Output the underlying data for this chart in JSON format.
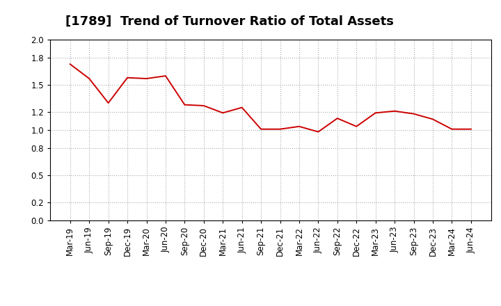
{
  "title": "[1789]  Trend of Turnover Ratio of Total Assets",
  "x_labels": [
    "Mar-19",
    "Jun-19",
    "Sep-19",
    "Dec-19",
    "Mar-20",
    "Jun-20",
    "Sep-20",
    "Dec-20",
    "Mar-21",
    "Jun-21",
    "Sep-21",
    "Dec-21",
    "Mar-22",
    "Jun-22",
    "Sep-22",
    "Dec-22",
    "Mar-23",
    "Jun-23",
    "Sep-23",
    "Dec-23",
    "Mar-24",
    "Jun-24"
  ],
  "values": [
    1.73,
    1.57,
    1.3,
    1.58,
    1.57,
    1.6,
    1.28,
    1.27,
    1.19,
    1.25,
    1.01,
    1.01,
    1.04,
    0.98,
    1.13,
    1.04,
    1.19,
    1.21,
    1.18,
    1.12,
    1.01,
    1.01
  ],
  "line_color": "#cc0000",
  "line_width": 1.4,
  "ylim": [
    0.0,
    2.0
  ],
  "yticks": [
    0.0,
    0.2,
    0.5,
    0.8,
    1.0,
    1.2,
    1.5,
    1.8,
    2.0
  ],
  "background_color": "#ffffff",
  "grid_color": "#aaaaaa",
  "title_fontsize": 13,
  "tick_fontsize": 8.5
}
